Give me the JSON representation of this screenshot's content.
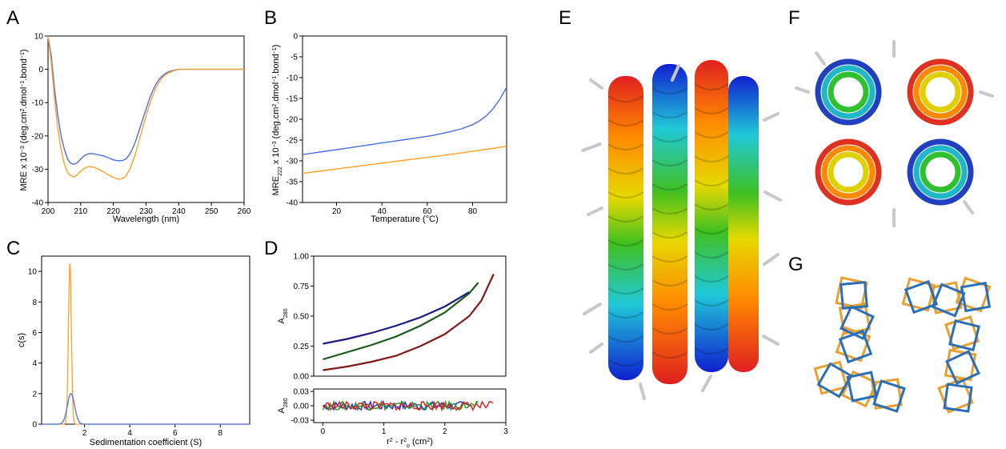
{
  "panels": {
    "A": "A",
    "B": "B",
    "C": "C",
    "D": "D",
    "E": "E",
    "F": "F",
    "G": "G"
  },
  "colors": {
    "blue": "#4a6fe3",
    "orange": "#ffa028",
    "navy": "#1a1a80",
    "darkgreen": "#1a5a1a",
    "darkred": "#801a1a",
    "res_blue": "#2030e0",
    "res_green": "#20a020",
    "res_red": "#e02020"
  },
  "icons": [
    "helix-bundle-side-view",
    "helix-bundle-top-view",
    "helix-backbone-overlay"
  ],
  "chart_data": [
    {
      "panel": "A",
      "type": "line",
      "xlabel": "Wavelength (nm)",
      "ylabel_parts": [
        "MRE x 10",
        "−3",
        " (deg.cm",
        "2",
        ".dmol",
        "−1",
        ".bond",
        "−1",
        ")"
      ],
      "xlim": [
        200,
        260
      ],
      "ylim": [
        -40,
        10
      ],
      "xticks": [
        200,
        210,
        220,
        230,
        240,
        250,
        260
      ],
      "yticks": [
        10,
        0,
        -10,
        -20,
        -30,
        -40
      ],
      "series": [
        {
          "color": "blue",
          "x": [
            200,
            201,
            202,
            203,
            204,
            205,
            206,
            207,
            208,
            209,
            210,
            211,
            212,
            213,
            214,
            215,
            216,
            217,
            218,
            219,
            220,
            221,
            222,
            223,
            224,
            225,
            226,
            227,
            228,
            229,
            230,
            231,
            232,
            233,
            234,
            235,
            236,
            237,
            238,
            239,
            240,
            242,
            245,
            250,
            255,
            260
          ],
          "y": [
            10,
            4,
            -6,
            -14,
            -20,
            -24,
            -27,
            -28.3,
            -28.5,
            -28,
            -27,
            -26,
            -25.5,
            -25.3,
            -25.4,
            -25.6,
            -25.8,
            -26,
            -26.4,
            -26.8,
            -27.2,
            -27.4,
            -27.5,
            -27.3,
            -26.8,
            -25.5,
            -23.5,
            -21,
            -18,
            -15,
            -12,
            -9,
            -6.5,
            -4.5,
            -3,
            -2,
            -1.2,
            -0.7,
            -0.4,
            -0.2,
            0,
            0,
            0,
            0,
            0,
            0
          ]
        },
        {
          "color": "orange",
          "x": [
            200,
            201,
            202,
            203,
            204,
            205,
            206,
            207,
            208,
            209,
            210,
            211,
            212,
            213,
            214,
            215,
            216,
            217,
            218,
            219,
            220,
            221,
            222,
            223,
            224,
            225,
            226,
            227,
            228,
            229,
            230,
            231,
            232,
            233,
            234,
            235,
            236,
            237,
            238,
            239,
            240,
            242,
            245,
            250,
            255,
            260
          ],
          "y": [
            10,
            2,
            -9,
            -18,
            -24,
            -28.5,
            -31,
            -32,
            -32.3,
            -31.6,
            -30.6,
            -29.8,
            -29.3,
            -29.2,
            -29.4,
            -29.8,
            -30.3,
            -30.8,
            -31.4,
            -32,
            -32.5,
            -32.9,
            -33,
            -32.7,
            -31.8,
            -30,
            -27.5,
            -24.5,
            -21,
            -17.5,
            -14,
            -10.8,
            -8,
            -5.6,
            -3.8,
            -2.5,
            -1.6,
            -1,
            -0.6,
            -0.3,
            0,
            0,
            0,
            0,
            0,
            0
          ]
        }
      ]
    },
    {
      "panel": "B",
      "type": "line",
      "xlabel": "Temperature (°C)",
      "ylabel_parts": [
        "MRE",
        "222",
        " x 10",
        "−3",
        " (deg.cm",
        "2",
        ".dmol",
        "−1",
        ".bond",
        "−1",
        ")"
      ],
      "xlim": [
        5,
        95
      ],
      "ylim": [
        -40,
        0
      ],
      "xticks": [
        20,
        40,
        60,
        80
      ],
      "yticks": [
        0,
        -5,
        -10,
        -15,
        -20,
        -25,
        -30,
        -35,
        -40
      ],
      "series": [
        {
          "color": "blue",
          "x": [
            5,
            10,
            15,
            20,
            25,
            30,
            35,
            40,
            45,
            50,
            55,
            60,
            65,
            70,
            75,
            80,
            83,
            86,
            89,
            92,
            95
          ],
          "y": [
            -28.5,
            -28.1,
            -27.7,
            -27.3,
            -26.9,
            -26.5,
            -26.1,
            -25.7,
            -25.3,
            -24.9,
            -24.5,
            -24.1,
            -23.6,
            -23.0,
            -22.3,
            -21.3,
            -20.4,
            -19.2,
            -17.5,
            -15.2,
            -12.3
          ]
        },
        {
          "color": "orange",
          "x": [
            5,
            15,
            25,
            35,
            45,
            55,
            65,
            75,
            85,
            95
          ],
          "y": [
            -33,
            -32.3,
            -31.6,
            -30.9,
            -30.2,
            -29.5,
            -28.8,
            -28.1,
            -27.3,
            -26.5
          ]
        }
      ]
    },
    {
      "panel": "C",
      "type": "line",
      "xlabel": "Sedimentation coefficient (S)",
      "ylabel": "c(s)",
      "xlim": [
        0.1,
        9.3
      ],
      "ylim": [
        0,
        11
      ],
      "xticks": [
        2,
        4,
        6,
        8
      ],
      "yticks": [
        0,
        2,
        4,
        6,
        8,
        10
      ],
      "series": [
        {
          "color": "orange",
          "peak": 1.35,
          "height": 10.5,
          "width": 0.065
        },
        {
          "color": "blue",
          "peak": 1.4,
          "height": 2.0,
          "width": 0.16
        }
      ]
    },
    {
      "panel": "D",
      "type": "line",
      "xlabel_parts": [
        "r",
        "2",
        " - r",
        "2",
        "o",
        " (cm",
        "2",
        ")"
      ],
      "ylabel_parts": [
        "A",
        "280"
      ],
      "residual_ylabel_parts": [
        "A",
        "280"
      ],
      "xlim": [
        -0.15,
        3.0
      ],
      "ylim": [
        0,
        1.0
      ],
      "residual_ylim": [
        -0.035,
        0.035
      ],
      "xticks": [
        0,
        1,
        2,
        3
      ],
      "yticks": [
        "0.00",
        "0.25",
        "0.50",
        "0.75",
        "1.00"
      ],
      "residual_yticks": [
        "0.03",
        "0.00",
        "-0.03"
      ],
      "series": [
        {
          "color": "navy",
          "x": [
            0,
            0.4,
            0.8,
            1.2,
            1.6,
            2.0,
            2.4
          ],
          "y": [
            0.27,
            0.31,
            0.36,
            0.42,
            0.49,
            0.58,
            0.7
          ]
        },
        {
          "color": "darkgreen",
          "x": [
            0,
            0.4,
            0.8,
            1.2,
            1.6,
            2.0,
            2.4,
            2.55
          ],
          "y": [
            0.14,
            0.2,
            0.26,
            0.33,
            0.42,
            0.53,
            0.69,
            0.78
          ]
        },
        {
          "color": "darkred",
          "x": [
            0,
            0.4,
            0.8,
            1.2,
            1.6,
            2.0,
            2.4,
            2.6,
            2.8
          ],
          "y": [
            0.05,
            0.08,
            0.12,
            0.17,
            0.25,
            0.35,
            0.5,
            0.63,
            0.85
          ]
        }
      ],
      "residual_series": [
        {
          "color": "res_blue",
          "xmax": 2.4
        },
        {
          "color": "res_green",
          "xmax": 2.55
        },
        {
          "color": "res_red",
          "xmax": 2.8
        }
      ]
    }
  ]
}
